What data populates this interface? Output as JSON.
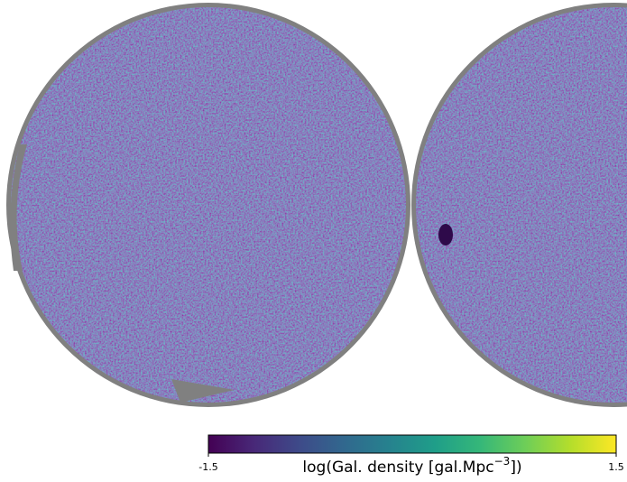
{
  "chart_data": {
    "type": "heatmap",
    "colorbar": {
      "clim": [
        -1.5,
        1.5
      ],
      "cticks": [
        -1.5,
        1.5
      ],
      "label": {
        "text": "log(Gal. density [gal.Mpc",
        "superscript": "−3",
        "suffix": "])"
      },
      "colors": [
        "#440154",
        "#482878",
        "#3e4a89",
        "#31688e",
        "#26828e",
        "#1f9e89",
        "#35b779",
        "#6ece58",
        "#b5de2b",
        "#fde725"
      ]
    }
  }
}
